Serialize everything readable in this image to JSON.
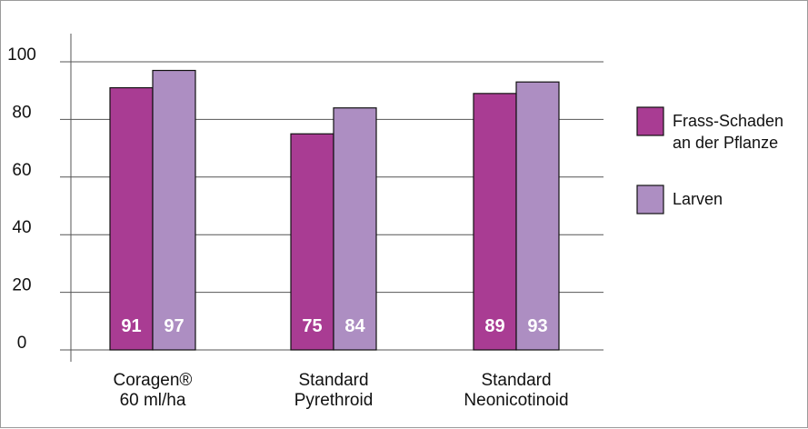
{
  "chart_data": {
    "type": "bar",
    "categories": [
      [
        "Coragen®",
        "60 ml/ha"
      ],
      [
        "Standard",
        "Pyrethroid"
      ],
      [
        "Standard",
        "Neonicotinoid"
      ]
    ],
    "series": [
      {
        "name": "Frass-Schaden an der Pflanze",
        "legend_lines": [
          "Frass-Schaden",
          "an der Pflanze"
        ],
        "values": [
          91,
          75,
          89
        ],
        "color": "#a93c93"
      },
      {
        "name": "Larven",
        "legend_lines": [
          "Larven"
        ],
        "values": [
          97,
          84,
          93
        ],
        "color": "#ad8ec2"
      }
    ],
    "yticks": [
      0,
      20,
      40,
      60,
      80,
      100
    ],
    "ylim": [
      0,
      100
    ],
    "grid": true,
    "legend_position": "right",
    "data_labels": true
  }
}
